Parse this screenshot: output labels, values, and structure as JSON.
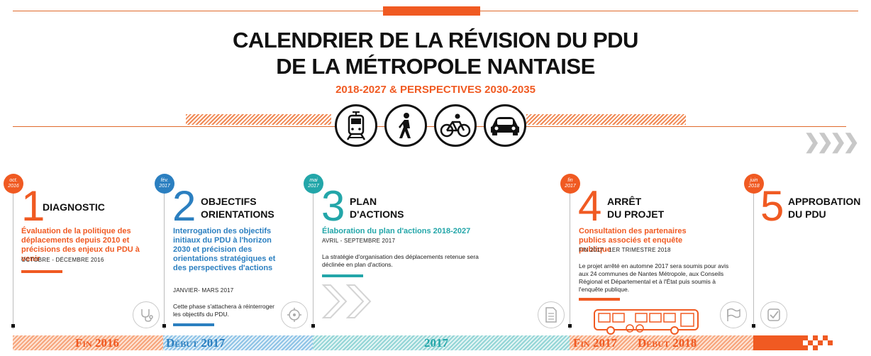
{
  "header": {
    "title_line1": "CALENDRIER DE LA RÉVISION DU PDU",
    "title_line2": "DE LA MÉTROPOLE NANTAISE",
    "subtitle": "2018-2027 & PERSPECTIVES 2030-2035"
  },
  "mode_icons": [
    "tram-icon",
    "pedestrian-icon",
    "bicycle-icon",
    "car-icon"
  ],
  "phases": [
    {
      "badge_line1": "oct.",
      "badge_line2": "2016",
      "number": "1",
      "title_line1": "DIAGNOSTIC",
      "title_line2": "",
      "heading": "Évaluation de la politique des déplacements depuis 2010 et précisions des enjeux du PDU à venir",
      "date": "octobre - décembre 2016",
      "description": "",
      "icon": "stethoscope-icon",
      "color": "#f05a22"
    },
    {
      "badge_line1": "fév.",
      "badge_line2": "2017",
      "number": "2",
      "title_line1": "OBJECTIFS",
      "title_line2": "ORIENTATIONS",
      "heading": "Interrogation des objectifs initiaux du PDU à l'horizon 2030 et précision des orientations stratégiques et des perspectives d'actions",
      "date": "janvier- mars 2017",
      "description": "Cette phase s'attachera à réinterroger les objectifs du PDU.",
      "icon": "compass-target-icon",
      "color": "#2b7fc0"
    },
    {
      "badge_line1": "mai",
      "badge_line2": "2017",
      "number": "3",
      "title_line1": "PLAN",
      "title_line2": "D'ACTIONS",
      "heading": "Élaboration du plan d'actions 2018-2027",
      "date": "avril - septembre 2017",
      "description": "La stratégie d'organisation des déplacements retenue sera déclinée en plan d'actions.",
      "icon": "double-chevron-icon",
      "color": "#23a6a9"
    },
    {
      "badge_line1": "fin",
      "badge_line2": "2017",
      "number": "4",
      "title_line1": "ARRÊT",
      "title_line2": "DU PROJET",
      "heading": "Consultation des partenaires publics associés et enquête publique",
      "date": "fin 2017 - 1er trimestre 2018",
      "description": "Le projet arrêté en automne 2017 sera soumis pour avis aux 24 communes de Nantes Métropole, aux Conseils Régional et Départemental et à l'État puis soumis à l'enquête publique.",
      "icon": "document-icon",
      "icon2": "flag-icon",
      "color": "#f05a22"
    },
    {
      "badge_line1": "juin",
      "badge_line2": "2018",
      "number": "5",
      "title_line1": "APPROBATION",
      "title_line2": "DU PDU",
      "heading": "",
      "date": "",
      "description": "",
      "icon": "checkbox-icon",
      "color": "#f05a22"
    }
  ],
  "timeline": {
    "segments": [
      "Fin 2016",
      "Début 2017",
      "2017",
      "Fin 2017",
      "Début 2018"
    ]
  },
  "colors": {
    "orange": "#f05a22",
    "blue": "#2b7fc0",
    "teal": "#23a6a9"
  }
}
